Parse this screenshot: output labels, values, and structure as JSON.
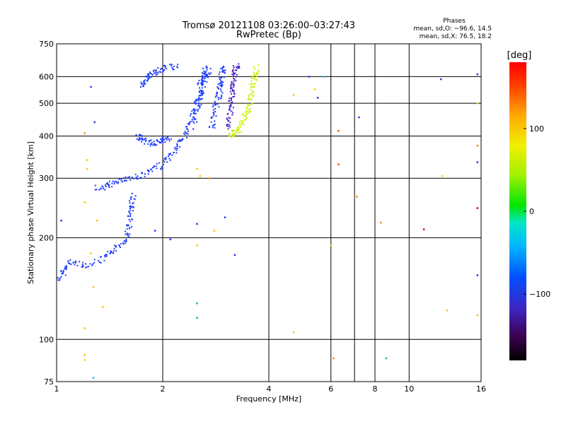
{
  "chart_data": {
    "type": "scatter",
    "title": "Tromsø 20121108 03:26:00–03:27:43",
    "subtitle": "RwPretec (Bp)",
    "xlabel": "Frequency [MHz]",
    "ylabel": "Stationary phase Virtual Height [km]",
    "x_scale": "log2",
    "y_scale": "log",
    "xlim": [
      1,
      16
    ],
    "ylim": [
      75,
      750
    ],
    "x_ticks": [
      1,
      2,
      4,
      6,
      8,
      10,
      16
    ],
    "x_tick_labels": [
      "1",
      "2",
      "4",
      "6",
      "8",
      "10",
      "16"
    ],
    "x_grid": [
      2,
      4,
      6,
      7,
      8,
      10
    ],
    "y_ticks": [
      75,
      100,
      200,
      300,
      400,
      500,
      600,
      750
    ],
    "y_tick_labels": [
      "75",
      "100",
      "200",
      "300",
      "400",
      "500",
      "600",
      "750"
    ],
    "y_grid": [
      100,
      200,
      300,
      400,
      500,
      600
    ],
    "grid": true,
    "phases_header": "Phases",
    "stats": [
      "mean, sd,O: −96.6, 14.5",
      "mean, sd,X:  76.5, 18.2"
    ],
    "colorbar": {
      "label": "[deg]",
      "range": [
        -180,
        180
      ],
      "ticks": [
        100,
        0,
        -100
      ],
      "tick_labels": [
        "100",
        "0",
        "−100"
      ]
    },
    "traces": [
      {
        "phase": -100,
        "color": "#1e3cff",
        "points": [
          [
            1.02,
            150
          ],
          [
            1.05,
            160
          ],
          [
            1.1,
            170
          ],
          [
            1.2,
            165
          ],
          [
            1.35,
            172
          ],
          [
            1.45,
            182
          ],
          [
            1.55,
            195
          ],
          [
            1.6,
            210
          ],
          [
            1.62,
            230
          ],
          [
            1.63,
            250
          ],
          [
            1.65,
            270
          ]
        ]
      },
      {
        "phase": -100,
        "color": "#1e3cff",
        "points": [
          [
            1.65,
            300
          ],
          [
            1.8,
            310
          ],
          [
            1.95,
            325
          ],
          [
            2.1,
            345
          ],
          [
            2.2,
            370
          ],
          [
            2.3,
            400
          ],
          [
            2.4,
            440
          ],
          [
            2.5,
            480
          ],
          [
            2.55,
            520
          ],
          [
            2.6,
            560
          ],
          [
            2.65,
            600
          ],
          [
            2.7,
            630
          ]
        ]
      },
      {
        "phase": -100,
        "color": "#1e3cff",
        "points": [
          [
            1.7,
            400
          ],
          [
            1.75,
            390
          ],
          [
            1.85,
            380
          ],
          [
            1.95,
            385
          ],
          [
            2.0,
            390
          ],
          [
            2.1,
            392
          ]
        ]
      },
      {
        "phase": -100,
        "color": "#1e3cff",
        "points": [
          [
            1.75,
            560
          ],
          [
            1.8,
            590
          ],
          [
            1.85,
            610
          ],
          [
            1.95,
            625
          ],
          [
            2.05,
            640
          ],
          [
            2.2,
            640
          ]
        ]
      },
      {
        "phase": -100,
        "color": "#1e3cff",
        "points": [
          [
            1.3,
            280
          ],
          [
            1.4,
            285
          ],
          [
            1.5,
            295
          ],
          [
            1.6,
            300
          ]
        ]
      },
      {
        "phase": -100,
        "color": "#1e3cff",
        "points": [
          [
            2.45,
            420
          ],
          [
            2.5,
            500
          ],
          [
            2.55,
            560
          ],
          [
            2.6,
            600
          ],
          [
            2.65,
            640
          ]
        ]
      },
      {
        "phase": -100,
        "color": "#1e3cff",
        "points": [
          [
            2.75,
            420
          ],
          [
            2.8,
            460
          ],
          [
            2.85,
            500
          ],
          [
            2.9,
            540
          ],
          [
            2.92,
            570
          ],
          [
            2.95,
            610
          ],
          [
            3.0,
            640
          ]
        ]
      },
      {
        "phase": -130,
        "color": "#4a1ec8",
        "points": [
          [
            3.05,
            420
          ],
          [
            3.1,
            460
          ],
          [
            3.12,
            500
          ],
          [
            3.15,
            540
          ],
          [
            3.18,
            580
          ],
          [
            3.2,
            620
          ],
          [
            3.25,
            650
          ]
        ]
      },
      {
        "phase": 90,
        "color": "#c8f000",
        "points": [
          [
            3.1,
            400
          ],
          [
            3.2,
            410
          ],
          [
            3.3,
            420
          ],
          [
            3.4,
            450
          ],
          [
            3.5,
            480
          ],
          [
            3.55,
            520
          ],
          [
            3.6,
            560
          ],
          [
            3.65,
            600
          ],
          [
            3.7,
            640
          ]
        ]
      }
    ],
    "scatter": [
      {
        "x": 1.25,
        "y": 560,
        "color": "#1e3cff"
      },
      {
        "x": 1.28,
        "y": 440,
        "color": "#1e3cff"
      },
      {
        "x": 1.2,
        "y": 408,
        "color": "#ff8c00"
      },
      {
        "x": 1.22,
        "y": 340,
        "color": "#ffc800"
      },
      {
        "x": 1.22,
        "y": 320,
        "color": "#ffc800"
      },
      {
        "x": 1.2,
        "y": 255,
        "color": "#ffc800"
      },
      {
        "x": 1.3,
        "y": 225,
        "color": "#ffc800"
      },
      {
        "x": 1.25,
        "y": 180,
        "color": "#ffc800"
      },
      {
        "x": 1.27,
        "y": 143,
        "color": "#ffc800"
      },
      {
        "x": 1.2,
        "y": 108,
        "color": "#ffc800"
      },
      {
        "x": 1.2,
        "y": 90,
        "color": "#ffc800"
      },
      {
        "x": 1.2,
        "y": 87,
        "color": "#ffc800"
      },
      {
        "x": 1.27,
        "y": 77,
        "color": "#00c8ff"
      },
      {
        "x": 1.03,
        "y": 225,
        "color": "#1e3cff"
      },
      {
        "x": 1.35,
        "y": 125,
        "color": "#ffc800"
      },
      {
        "x": 1.9,
        "y": 210,
        "color": "#1e3cff"
      },
      {
        "x": 2.1,
        "y": 198,
        "color": "#1e3cff"
      },
      {
        "x": 2.5,
        "y": 320,
        "color": "#ffc800"
      },
      {
        "x": 2.55,
        "y": 305,
        "color": "#ffc800"
      },
      {
        "x": 2.5,
        "y": 220,
        "color": "#1e3cff"
      },
      {
        "x": 2.5,
        "y": 190,
        "color": "#ffc800"
      },
      {
        "x": 2.5,
        "y": 128,
        "color": "#00c878"
      },
      {
        "x": 2.5,
        "y": 116,
        "color": "#00c878"
      },
      {
        "x": 2.7,
        "y": 300,
        "color": "#ff8c00"
      },
      {
        "x": 2.8,
        "y": 210,
        "color": "#ffc800"
      },
      {
        "x": 3.0,
        "y": 230,
        "color": "#1e3cff"
      },
      {
        "x": 3.2,
        "y": 178,
        "color": "#1e3cff"
      },
      {
        "x": 4.7,
        "y": 530,
        "color": "#ffc800"
      },
      {
        "x": 4.7,
        "y": 105,
        "color": "#ffc800"
      },
      {
        "x": 5.2,
        "y": 600,
        "color": "#1e3cff"
      },
      {
        "x": 5.4,
        "y": 550,
        "color": "#ffc800"
      },
      {
        "x": 5.5,
        "y": 520,
        "color": "#1e3cff"
      },
      {
        "x": 5.7,
        "y": 600,
        "color": "#00c8ff"
      },
      {
        "x": 6.0,
        "y": 190,
        "color": "#ffc800"
      },
      {
        "x": 6.1,
        "y": 88,
        "color": "#ff8c00"
      },
      {
        "x": 6.3,
        "y": 415,
        "color": "#ff5000"
      },
      {
        "x": 6.3,
        "y": 330,
        "color": "#ff5000"
      },
      {
        "x": 7.1,
        "y": 265,
        "color": "#ff8c00"
      },
      {
        "x": 7.2,
        "y": 455,
        "color": "#1e3cff"
      },
      {
        "x": 8.3,
        "y": 222,
        "color": "#ff8c00"
      },
      {
        "x": 8.6,
        "y": 88,
        "color": "#00c878"
      },
      {
        "x": 11.0,
        "y": 212,
        "color": "#e60000"
      },
      {
        "x": 12.3,
        "y": 590,
        "color": "#1e3cff"
      },
      {
        "x": 12.4,
        "y": 305,
        "color": "#c8f000"
      },
      {
        "x": 12.8,
        "y": 122,
        "color": "#ffc800"
      },
      {
        "x": 15.6,
        "y": 610,
        "color": "#1e3cff"
      },
      {
        "x": 15.6,
        "y": 500,
        "color": "#ffc800"
      },
      {
        "x": 15.6,
        "y": 375,
        "color": "#ff8c00"
      },
      {
        "x": 15.6,
        "y": 335,
        "color": "#1e3cff"
      },
      {
        "x": 15.6,
        "y": 245,
        "color": "#c80028"
      },
      {
        "x": 15.6,
        "y": 155,
        "color": "#1e3cff"
      },
      {
        "x": 15.6,
        "y": 118,
        "color": "#ffc800"
      }
    ]
  }
}
